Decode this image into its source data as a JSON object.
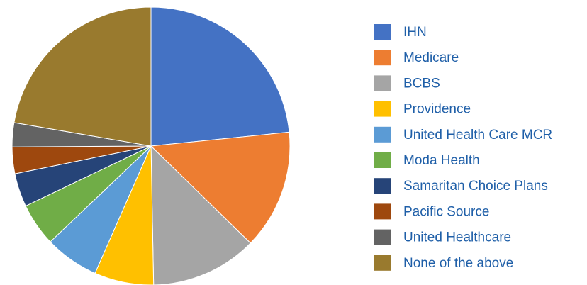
{
  "chart_data": {
    "type": "pie",
    "categories": [
      "IHN",
      "Medicare",
      "BCBS",
      "Providence",
      "United Health Care MCR",
      "Moda Health",
      "Samaritan Choice Plans",
      "Pacific Source",
      "United Healthcare",
      "None of the above"
    ],
    "values": [
      23.4,
      13.9,
      12.4,
      6.9,
      6.3,
      5.0,
      3.9,
      3.1,
      2.8,
      22.3
    ],
    "colors": [
      "#4472c4",
      "#ed7d31",
      "#a5a5a5",
      "#ffc000",
      "#5b9bd5",
      "#70ad47",
      "#264478",
      "#9e480e",
      "#636363",
      "#997a2e"
    ],
    "legend": "right"
  }
}
